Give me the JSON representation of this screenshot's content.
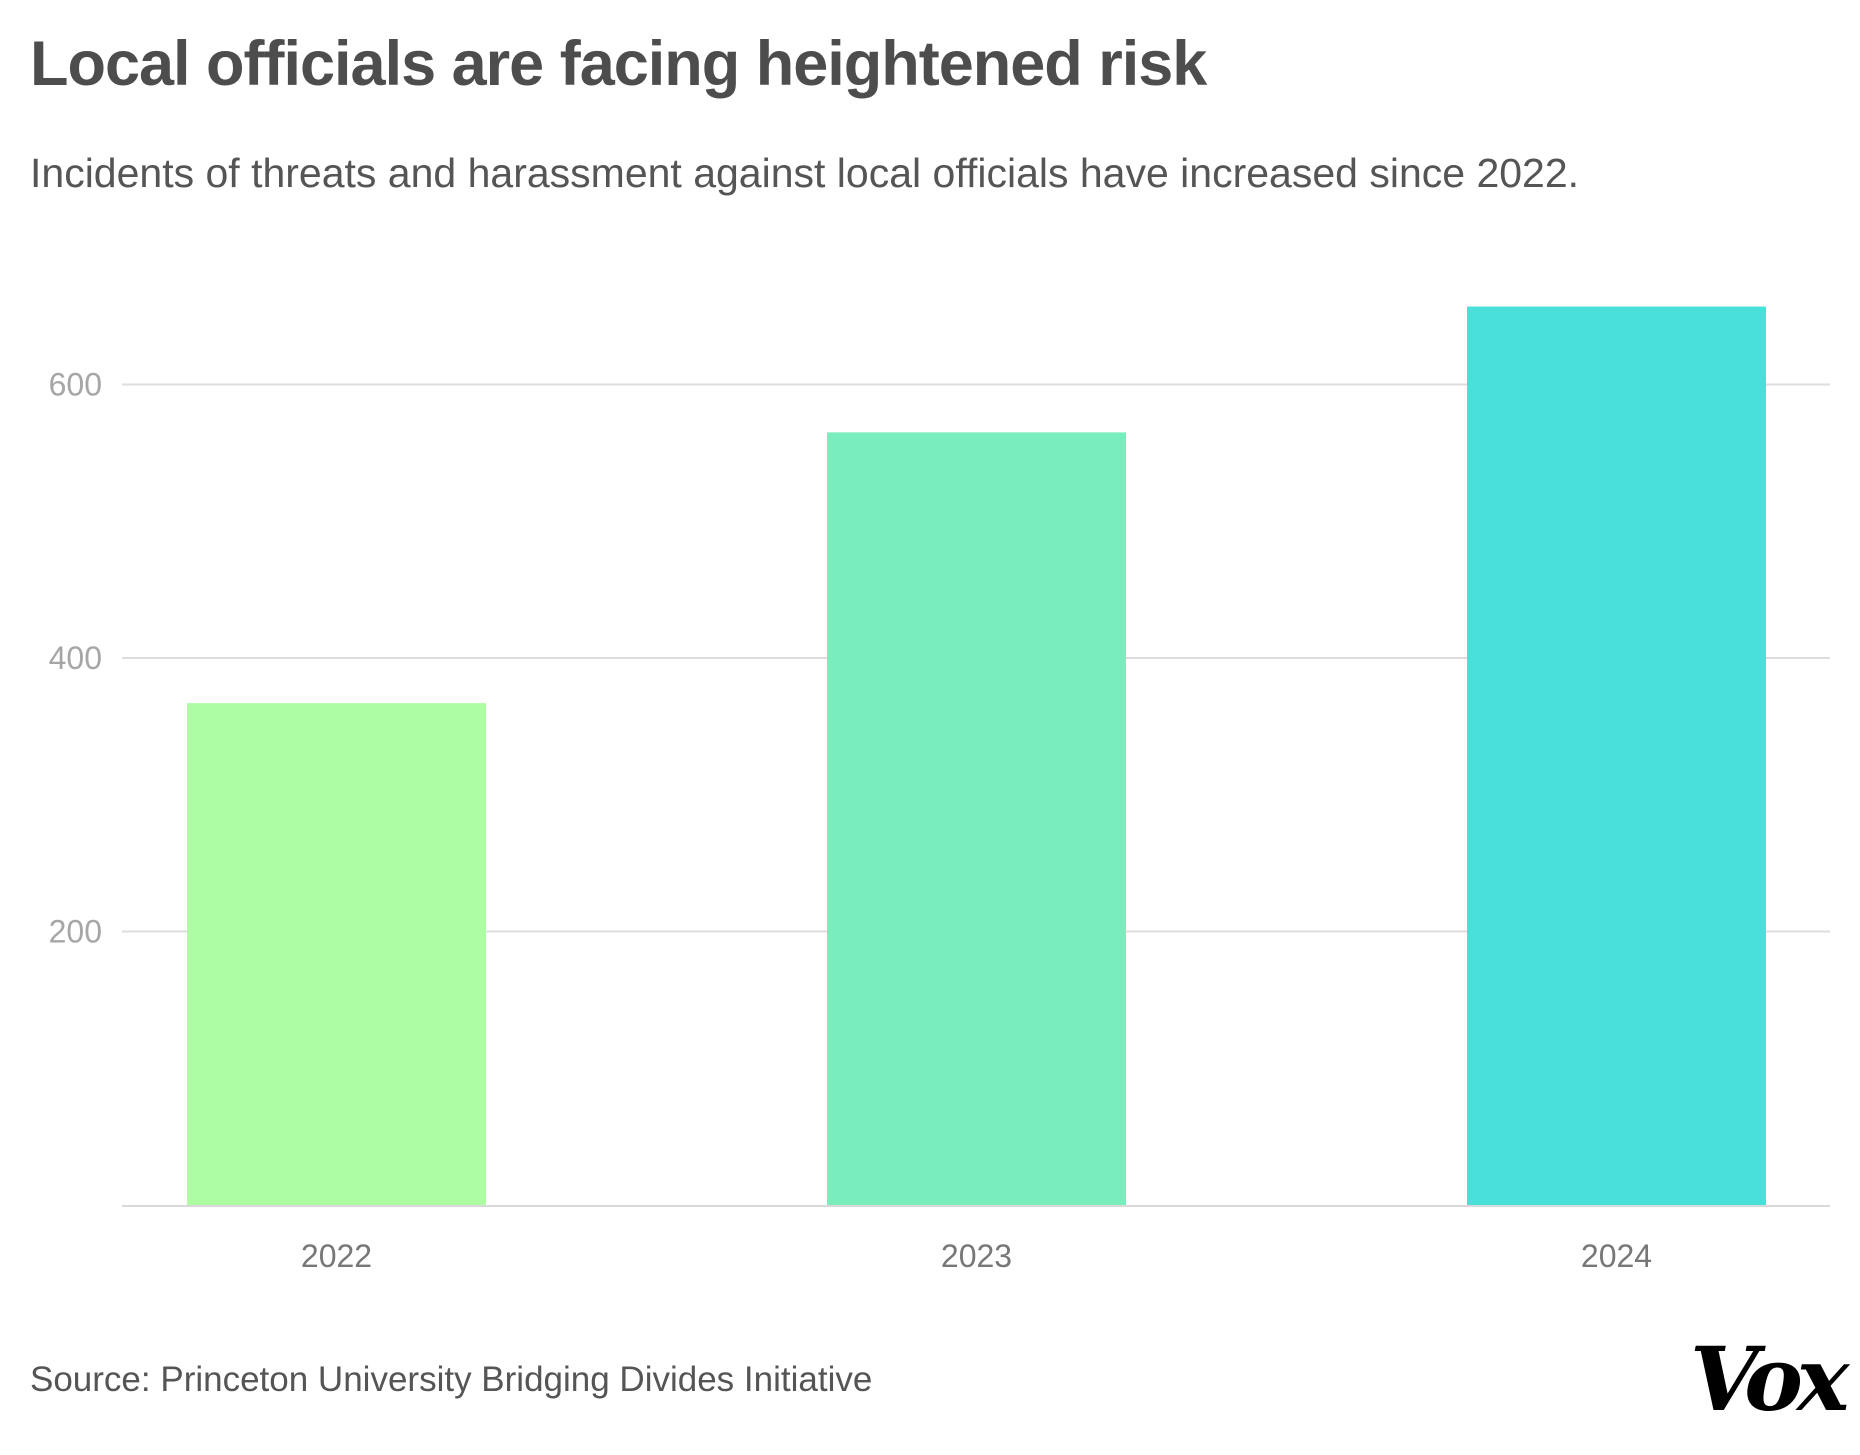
{
  "header": {
    "title": "Local officials are facing heightened risk",
    "subtitle": "Incidents of threats and harassment against local officials have increased since 2022."
  },
  "footer": {
    "source": "Source: Princeton University Bridging Divides Initiative",
    "logo": "Vox"
  },
  "chart_data": {
    "type": "bar",
    "title": "Local officials are facing heightened risk",
    "subtitle": "Incidents of threats and harassment against local officials have increased since 2022.",
    "categories": [
      "2022",
      "2023",
      "2024"
    ],
    "values": [
      367,
      565,
      657
    ],
    "colors": [
      "#adfda2",
      "#79eebc",
      "#48e0d9"
    ],
    "xlabel": "",
    "ylabel": "",
    "ylim": [
      0,
      700
    ],
    "yticks": [
      200,
      400,
      600
    ],
    "ytick_labels": [
      "200",
      "400",
      "600"
    ],
    "grid": true,
    "gridline_color": "#dddddd"
  }
}
